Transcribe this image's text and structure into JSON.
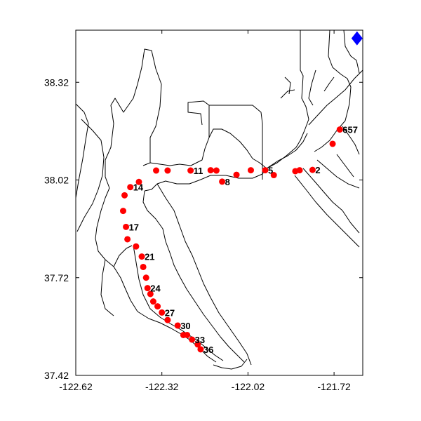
{
  "chart_data": {
    "type": "scatter",
    "title": "",
    "xlabel": "",
    "ylabel": "",
    "xlim": [
      -122.62,
      -121.62
    ],
    "ylim": [
      37.42,
      38.48
    ],
    "x_ticks": [
      -122.62,
      -122.32,
      -122.02,
      -121.72
    ],
    "x_tick_labels": [
      "-122.62",
      "-122.32",
      "-122.02",
      "-121.72"
    ],
    "y_ticks": [
      37.42,
      37.72,
      38.02,
      38.32
    ],
    "y_tick_labels": [
      "37.42",
      "37.72",
      "38.02",
      "38.32"
    ],
    "grid": false,
    "station_color": "#ff0000",
    "marker_color": "#0000ff",
    "shoreline_color": "#000000",
    "stations": [
      {
        "lon": -121.7,
        "lat": 38.175,
        "label": "657"
      },
      {
        "lon": -121.725,
        "lat": 38.131,
        "label": ""
      },
      {
        "lon": -121.795,
        "lat": 38.051,
        "label": "2"
      },
      {
        "lon": -121.84,
        "lat": 38.05,
        "label": ""
      },
      {
        "lon": -121.855,
        "lat": 38.047,
        "label": ""
      },
      {
        "lon": -121.93,
        "lat": 38.035,
        "label": ""
      },
      {
        "lon": -121.96,
        "lat": 38.05,
        "label": "5"
      },
      {
        "lon": -122.01,
        "lat": 38.05,
        "label": ""
      },
      {
        "lon": -122.06,
        "lat": 38.036,
        "label": ""
      },
      {
        "lon": -122.11,
        "lat": 38.015,
        "label": "8"
      },
      {
        "lon": -122.13,
        "lat": 38.049,
        "label": ""
      },
      {
        "lon": -122.15,
        "lat": 38.05,
        "label": ""
      },
      {
        "lon": -122.22,
        "lat": 38.049,
        "label": "11"
      },
      {
        "lon": -122.3,
        "lat": 38.049,
        "label": ""
      },
      {
        "lon": -122.34,
        "lat": 38.049,
        "label": ""
      },
      {
        "lon": -122.4,
        "lat": 38.014,
        "label": ""
      },
      {
        "lon": -122.43,
        "lat": 37.998,
        "label": "14"
      },
      {
        "lon": -122.45,
        "lat": 37.973,
        "label": ""
      },
      {
        "lon": -122.455,
        "lat": 37.925,
        "label": ""
      },
      {
        "lon": -122.445,
        "lat": 37.876,
        "label": "17"
      },
      {
        "lon": -122.44,
        "lat": 37.838,
        "label": ""
      },
      {
        "lon": -122.41,
        "lat": 37.816,
        "label": ""
      },
      {
        "lon": -122.39,
        "lat": 37.785,
        "label": "21"
      },
      {
        "lon": -122.385,
        "lat": 37.753,
        "label": ""
      },
      {
        "lon": -122.375,
        "lat": 37.72,
        "label": ""
      },
      {
        "lon": -122.37,
        "lat": 37.688,
        "label": "24"
      },
      {
        "lon": -122.36,
        "lat": 37.67,
        "label": ""
      },
      {
        "lon": -122.35,
        "lat": 37.647,
        "label": ""
      },
      {
        "lon": -122.335,
        "lat": 37.632,
        "label": ""
      },
      {
        "lon": -122.32,
        "lat": 37.613,
        "label": "27"
      },
      {
        "lon": -122.3,
        "lat": 37.59,
        "label": ""
      },
      {
        "lon": -122.265,
        "lat": 37.573,
        "label": "30"
      },
      {
        "lon": -122.245,
        "lat": 37.544,
        "label": ""
      },
      {
        "lon": -122.232,
        "lat": 37.544,
        "label": ""
      },
      {
        "lon": -122.215,
        "lat": 37.53,
        "label": "33"
      },
      {
        "lon": -122.195,
        "lat": 37.515,
        "label": ""
      },
      {
        "lon": -122.185,
        "lat": 37.5,
        "label": "36"
      }
    ],
    "markers": [
      {
        "lon": -121.64,
        "lat": 38.455,
        "shape": "diamond"
      }
    ]
  }
}
